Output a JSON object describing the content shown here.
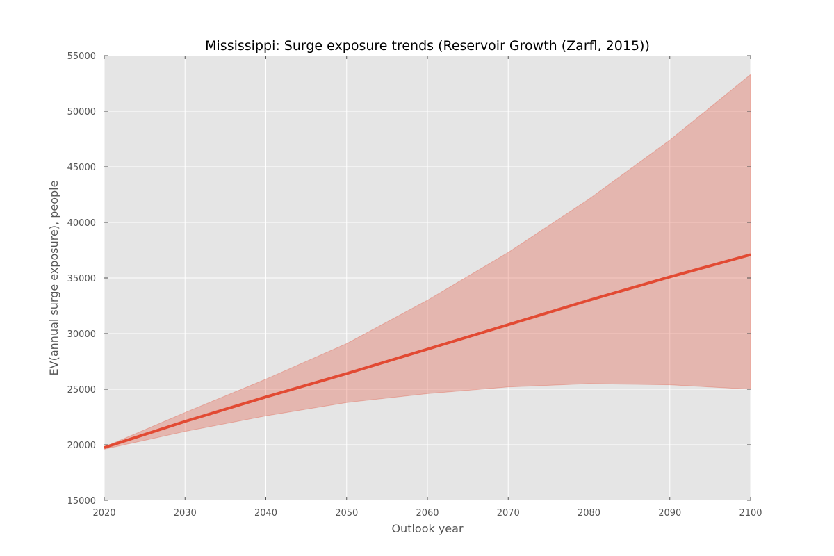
{
  "chart_data": {
    "type": "area",
    "title": "Mississippi: Surge exposure trends (Reservoir Growth (Zarfl, 2015))",
    "xlabel": "Outlook year",
    "ylabel": "EV(annual surge exposure), people",
    "xlim": [
      2020,
      2100
    ],
    "ylim": [
      15000,
      55000
    ],
    "grid": true,
    "x": [
      2020,
      2030,
      2040,
      2050,
      2060,
      2070,
      2080,
      2090,
      2100
    ],
    "xticks": [
      2020,
      2030,
      2040,
      2050,
      2060,
      2070,
      2080,
      2090,
      2100
    ],
    "yticks": [
      15000,
      20000,
      25000,
      30000,
      35000,
      40000,
      45000,
      50000,
      55000
    ],
    "series": [
      {
        "values": [
          19750,
          22100,
          24300,
          26400,
          28600,
          30800,
          33000,
          35100,
          37100
        ]
      }
    ],
    "band": {
      "upper": [
        19800,
        22900,
        25900,
        29100,
        33000,
        37300,
        42100,
        47400,
        53300
      ],
      "lower": [
        19600,
        21200,
        22600,
        23800,
        24600,
        25200,
        25500,
        25400,
        25000
      ]
    },
    "colors": {
      "plot_background": "#e5e5e5",
      "grid": "#ffffff",
      "line": "#e24a33",
      "band": "#e24a33"
    }
  }
}
